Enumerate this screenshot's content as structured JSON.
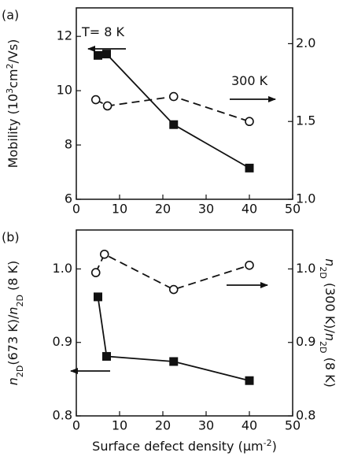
{
  "chart_data": [
    {
      "type": "line",
      "panel_label": "(a)",
      "ylabel": [
        {
          "text": "Mobility (10"
        },
        {
          "text": "3",
          "style": "sup"
        },
        {
          "text": "cm"
        },
        {
          "text": "2",
          "style": "sup"
        },
        {
          "text": "/Vs)"
        }
      ],
      "xlim": [
        0,
        50
      ],
      "xticks": [
        0,
        10,
        20,
        30,
        40,
        50
      ],
      "ylim": [
        6,
        13.05
      ],
      "yticks": [
        6,
        8,
        10,
        12
      ],
      "y2lim": [
        1.0,
        2.23
      ],
      "y2ticks": [
        {
          "value": 1.0,
          "label": "1.0"
        },
        {
          "value": 1.5,
          "label": "1.5"
        },
        {
          "value": 2.0,
          "label": "2.0"
        }
      ],
      "annotations": [
        "T= 8 K",
        "300 K"
      ],
      "series": [
        {
          "color": "#111111",
          "marker": "square",
          "dash": false,
          "x": [
            5,
            7,
            22.5,
            40
          ],
          "values": [
            11.3,
            11.35,
            8.75,
            7.15
          ]
        },
        {
          "color": "#111111",
          "marker": "circle",
          "dash": true,
          "axis": "y2",
          "x": [
            4.5,
            7.2,
            22.5,
            40
          ],
          "values": [
            1.64,
            1.6,
            1.66,
            1.5
          ]
        }
      ]
    },
    {
      "type": "line",
      "panel_label": "(b)",
      "ylabel": [
        {
          "text": "n",
          "style": "italic"
        },
        {
          "text": "2D",
          "style": "sub"
        },
        {
          "text": "(673 K)/"
        },
        {
          "text": "n",
          "style": "italic"
        },
        {
          "text": "2D",
          "style": "sub"
        },
        {
          "text": " (8 K)"
        }
      ],
      "y2label": [
        {
          "text": "n",
          "style": "italic"
        },
        {
          "text": "2D",
          "style": "sub"
        },
        {
          "text": " (300 K)/"
        },
        {
          "text": "n",
          "style": "italic"
        },
        {
          "text": "2D",
          "style": "sub"
        },
        {
          "text": " (8 K)"
        }
      ],
      "xlabel": [
        {
          "text": "Surface defect density (μm"
        },
        {
          "text": "-2",
          "style": "sup"
        },
        {
          "text": ")"
        }
      ],
      "xlim": [
        0,
        50
      ],
      "xticks": [
        0,
        10,
        20,
        30,
        40,
        50
      ],
      "ylim": [
        0.8,
        1.053
      ],
      "yticks": [
        {
          "value": 0.8,
          "label": "0.8"
        },
        {
          "value": 0.9,
          "label": "0.9"
        },
        {
          "value": 1.0,
          "label": "1.0"
        }
      ],
      "y2lim": [
        0.8,
        1.053
      ],
      "y2ticks": [
        {
          "value": 0.8,
          "label": "0.8"
        },
        {
          "value": 0.9,
          "label": "0.9"
        },
        {
          "value": 1.0,
          "label": "1.0"
        }
      ],
      "series": [
        {
          "color": "#111111",
          "marker": "square",
          "dash": false,
          "x": [
            5,
            7,
            22.5,
            40
          ],
          "values": [
            0.962,
            0.881,
            0.874,
            0.848
          ]
        },
        {
          "color": "#111111",
          "marker": "circle",
          "dash": true,
          "axis": "y2",
          "x": [
            4.5,
            6.5,
            22.5,
            40
          ],
          "values": [
            0.995,
            1.02,
            0.972,
            1.005
          ]
        }
      ]
    }
  ]
}
